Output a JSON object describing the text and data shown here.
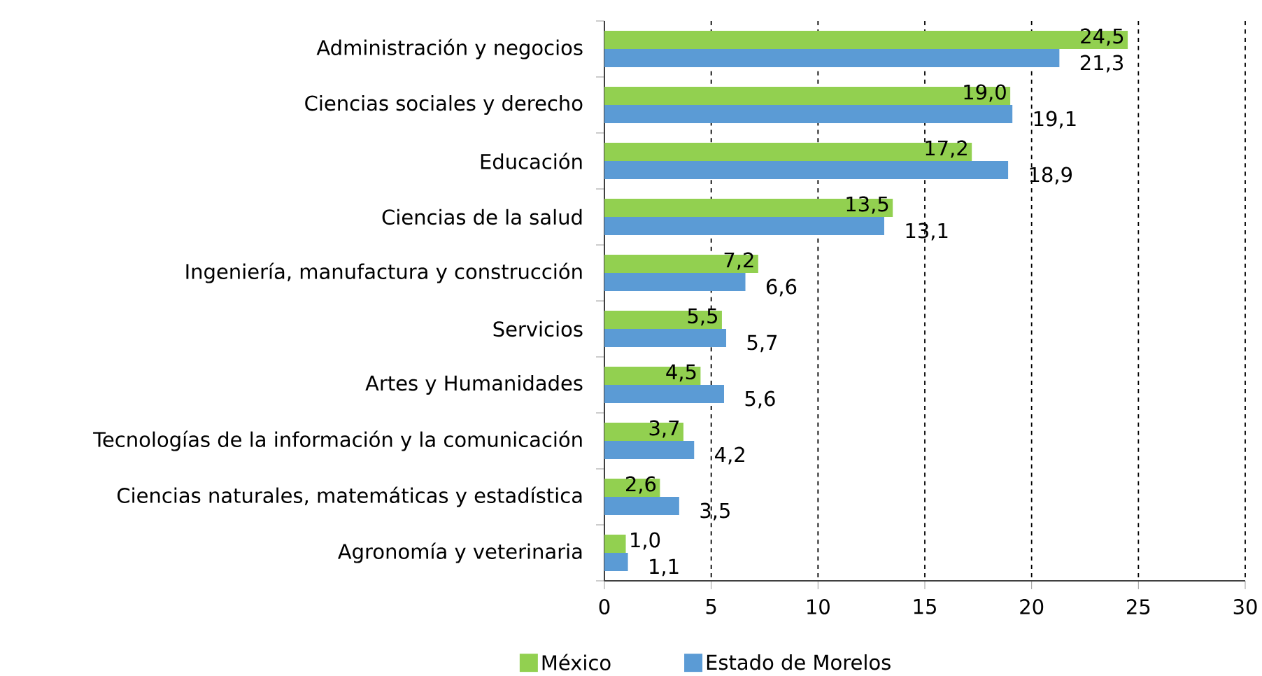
{
  "chart_data": {
    "type": "bar",
    "orientation": "horizontal",
    "categories": [
      "Administración y negocios",
      "Ciencias sociales y derecho",
      "Educación",
      "Ciencias de la salud",
      "Ingeniería, manufactura y construcción",
      "Servicios",
      "Artes y Humanidades",
      "Tecnologías de la información y la comunicación",
      "Ciencias naturales, matemáticas y estadística",
      "Agronomía y veterinaria"
    ],
    "series": [
      {
        "name": "México",
        "color": "#92d050",
        "values": [
          24.5,
          19.0,
          17.2,
          13.5,
          7.2,
          5.5,
          4.5,
          3.7,
          2.6,
          1.0
        ],
        "value_labels": [
          "24,5",
          "19,0",
          "17,2",
          "13,5",
          "7,2",
          "5,5",
          "4,5",
          "3,7",
          "2,6",
          "1,0"
        ]
      },
      {
        "name": "Estado de Morelos",
        "color": "#5b9bd5",
        "values": [
          21.3,
          19.1,
          18.9,
          13.1,
          6.6,
          5.7,
          5.6,
          4.2,
          3.5,
          1.1
        ],
        "value_labels": [
          "21,3",
          "19,1",
          "18,9",
          "13,1",
          "6,6",
          "5,7",
          "5,6",
          "4,2",
          "3,5",
          "1,1"
        ]
      }
    ],
    "xlim": [
      0,
      30
    ],
    "xticks": [
      0,
      5,
      10,
      15,
      20,
      25,
      30
    ],
    "grid": "x",
    "legend": "bottom"
  }
}
